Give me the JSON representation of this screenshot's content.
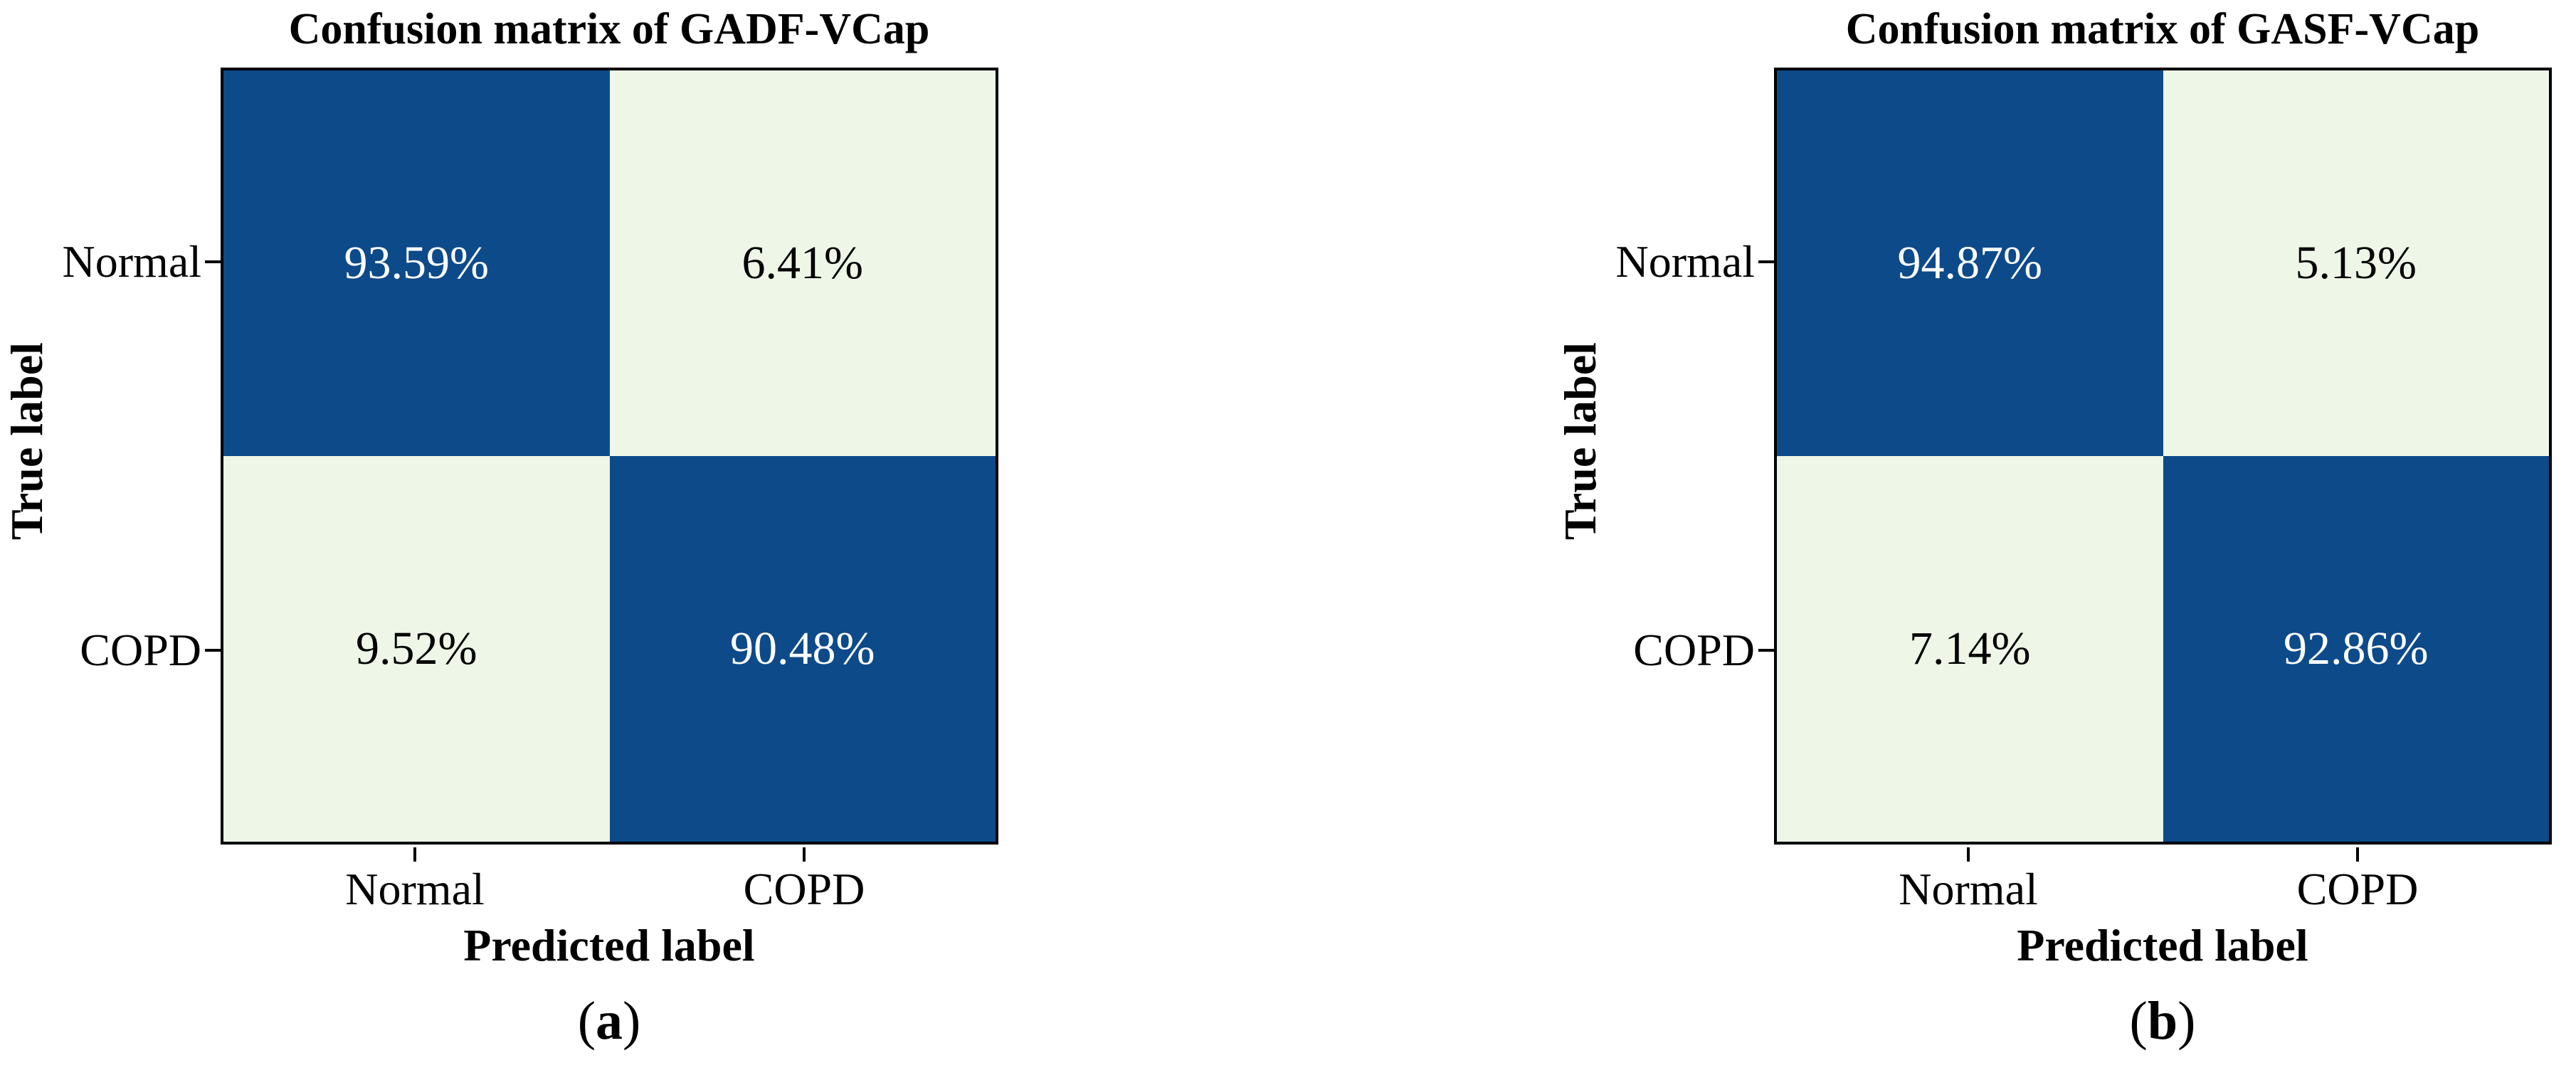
{
  "colors": {
    "dark_cell": "#0c4a8a",
    "light_cell": "#edf6e7",
    "dark_cell_text": "#ffffff",
    "light_cell_text": "#000000",
    "border": "#000000"
  },
  "panels": [
    {
      "title": "Confusion matrix of GADF-VCap",
      "ylabel": "True label",
      "xlabel": "Predicted label",
      "y_tick_labels": [
        "Normal",
        "COPD"
      ],
      "x_tick_labels": [
        "Normal",
        "COPD"
      ],
      "cells": [
        [
          "93.59%",
          "6.41%"
        ],
        [
          "9.52%",
          "90.48%"
        ]
      ],
      "caption": {
        "open": "(",
        "letter": "a",
        "close": ")"
      }
    },
    {
      "title": "Confusion matrix of GASF-VCap",
      "ylabel": "True label",
      "xlabel": "Predicted label",
      "y_tick_labels": [
        "Normal",
        "COPD"
      ],
      "x_tick_labels": [
        "Normal",
        "COPD"
      ],
      "cells": [
        [
          "94.87%",
          "5.13%"
        ],
        [
          "7.14%",
          "92.86%"
        ]
      ],
      "caption": {
        "open": "(",
        "letter": "b",
        "close": ")"
      }
    }
  ],
  "chart_data": [
    {
      "type": "heatmap",
      "title": "Confusion matrix of GADF-VCap",
      "xlabel": "Predicted label",
      "ylabel": "True label",
      "x_categories": [
        "Normal",
        "COPD"
      ],
      "y_categories": [
        "Normal",
        "COPD"
      ],
      "values_percent": [
        [
          93.59,
          6.41
        ],
        [
          9.52,
          90.48
        ]
      ],
      "cell_labels": [
        [
          "93.59%",
          "6.41%"
        ],
        [
          "9.52%",
          "90.48%"
        ]
      ],
      "caption": "(a)",
      "colormap": {
        "high_value_color": "#0c4a8a",
        "low_value_color": "#edf6e7"
      },
      "grid": false,
      "legend": "none"
    },
    {
      "type": "heatmap",
      "title": "Confusion matrix of GASF-VCap",
      "xlabel": "Predicted label",
      "ylabel": "True label",
      "x_categories": [
        "Normal",
        "COPD"
      ],
      "y_categories": [
        "Normal",
        "COPD"
      ],
      "values_percent": [
        [
          94.87,
          5.13
        ],
        [
          7.14,
          92.86
        ]
      ],
      "cell_labels": [
        [
          "94.87%",
          "5.13%"
        ],
        [
          "7.14%",
          "92.86%"
        ]
      ],
      "caption": "(b)",
      "colormap": {
        "high_value_color": "#0c4a8a",
        "low_value_color": "#edf6e7"
      },
      "grid": false,
      "legend": "none"
    }
  ]
}
